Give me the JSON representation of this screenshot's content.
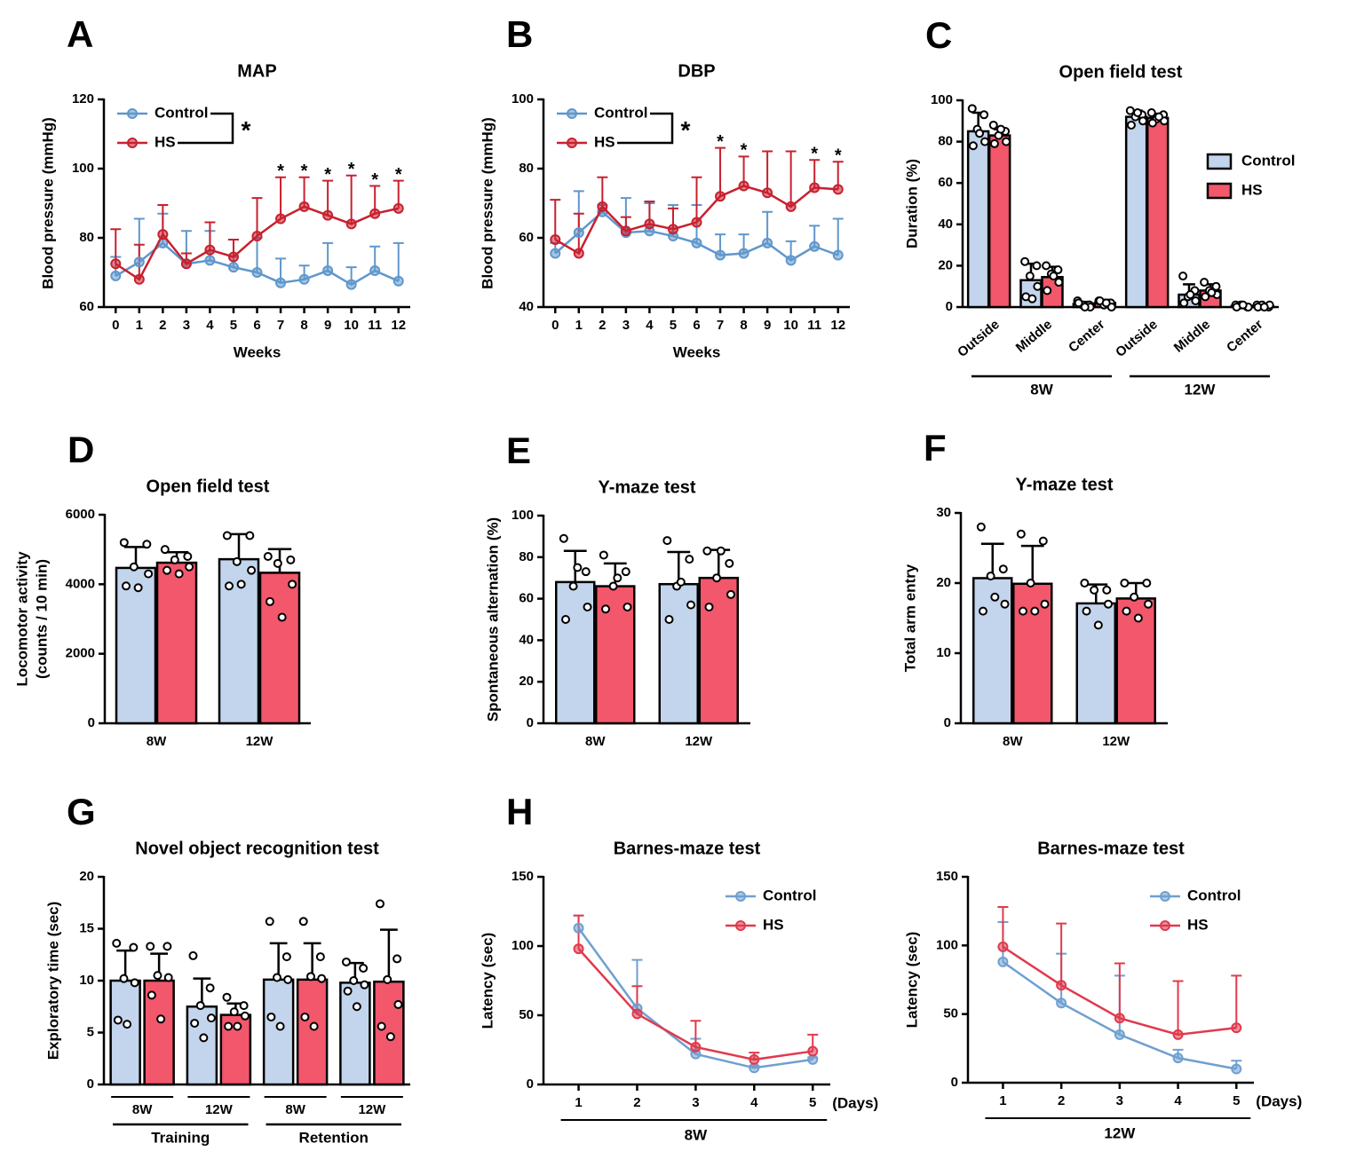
{
  "chart_data": [
    {
      "type": "line",
      "panel": "A",
      "title": "MAP",
      "ylabel": "Blood pressure (mmHg)",
      "xlabel": "Weeks",
      "x": [
        0,
        1,
        2,
        3,
        4,
        5,
        6,
        7,
        8,
        9,
        10,
        11,
        12
      ],
      "xlim": [
        -0.5,
        12.5
      ],
      "xticks": [
        0,
        1,
        2,
        3,
        4,
        5,
        6,
        7,
        8,
        9,
        10,
        11,
        12
      ],
      "ylim": [
        60,
        120
      ],
      "yticks": [
        60,
        80,
        100,
        120
      ],
      "legend": "top-left",
      "significance": "*",
      "series": [
        {
          "name": "Control",
          "color": "#5f97cc",
          "values": [
            69,
            73,
            78.5,
            72.5,
            73.5,
            71.5,
            70,
            67,
            68,
            70.5,
            66.5,
            70.5,
            67.5
          ],
          "errors": [
            5.5,
            12.5,
            8.5,
            9.5,
            8.5,
            3,
            10,
            7,
            4,
            8,
            5,
            7,
            11
          ]
        },
        {
          "name": "HS",
          "color": "#c8202f",
          "values": [
            72.5,
            68,
            81,
            72.5,
            76.5,
            74.5,
            80.5,
            85.5,
            89,
            86.5,
            84,
            87,
            88.5
          ],
          "errors": [
            10,
            10,
            8.5,
            3,
            8,
            5,
            11,
            12,
            8.5,
            10,
            14,
            8,
            8
          ]
        }
      ],
      "annotations": [
        {
          "x": 7,
          "text": "*"
        },
        {
          "x": 8,
          "text": "*"
        },
        {
          "x": 9,
          "text": "*"
        },
        {
          "x": 10,
          "text": "*"
        },
        {
          "x": 11,
          "text": "*"
        },
        {
          "x": 12,
          "text": "*"
        }
      ]
    },
    {
      "type": "line",
      "panel": "B",
      "title": "DBP",
      "ylabel": "Blood pressure (mmHg)",
      "xlabel": "Weeks",
      "x": [
        0,
        1,
        2,
        3,
        4,
        5,
        6,
        7,
        8,
        9,
        10,
        11,
        12
      ],
      "xlim": [
        -0.5,
        12.5
      ],
      "xticks": [
        0,
        1,
        2,
        3,
        4,
        5,
        6,
        7,
        8,
        9,
        10,
        11,
        12
      ],
      "ylim": [
        40,
        100
      ],
      "yticks": [
        40,
        60,
        80,
        100
      ],
      "legend": "top-left",
      "significance": "*",
      "series": [
        {
          "name": "Control",
          "color": "#5f97cc",
          "values": [
            55.5,
            61.5,
            67.5,
            61.5,
            62,
            60.5,
            58.5,
            55,
            55.5,
            58.5,
            53.5,
            57.5,
            55
          ],
          "errors": [
            3,
            12,
            2,
            10,
            8,
            9,
            11,
            6,
            5.5,
            9,
            5.5,
            6,
            10.5
          ]
        },
        {
          "name": "HS",
          "color": "#c8202f",
          "values": [
            59.5,
            55.5,
            69,
            62,
            64,
            62.5,
            64.5,
            72,
            75,
            73,
            69,
            74.5,
            74
          ],
          "errors": [
            11.5,
            11.5,
            8.5,
            4,
            6.5,
            6,
            13,
            14,
            8.5,
            12,
            16,
            8,
            8
          ]
        }
      ],
      "annotations": [
        {
          "x": 7,
          "text": "*"
        },
        {
          "x": 8,
          "text": "*"
        },
        {
          "x": 11,
          "text": "*"
        },
        {
          "x": 12,
          "text": "*"
        }
      ]
    },
    {
      "type": "bar",
      "panel": "C",
      "title": "Open field test",
      "ylabel": "Duration (%)",
      "categories": [
        "Outside",
        "Middle",
        "Center",
        "Outside",
        "Middle",
        "Center"
      ],
      "groups": [
        "8W",
        "12W"
      ],
      "ylim": [
        0,
        100
      ],
      "yticks": [
        0,
        20,
        40,
        60,
        80,
        100
      ],
      "legend": "right",
      "series": [
        {
          "name": "Control",
          "color": "#c3d5ec",
          "values": [
            85,
            13,
            1.5,
            92,
            6,
            0.5
          ],
          "errors": [
            9,
            8,
            1,
            3,
            5,
            0.3
          ],
          "points": [
            [
              96,
              93,
              86,
              80,
              78,
              84
            ],
            [
              22,
              20,
              15,
              10,
              5,
              4
            ],
            [
              3,
              1,
              1,
              0,
              2,
              0
            ],
            [
              95,
              93,
              92,
              90,
              88,
              94
            ],
            [
              15,
              8,
              5,
              3,
              2,
              6
            ],
            [
              1,
              0,
              1,
              0,
              0,
              1
            ]
          ]
        },
        {
          "name": "HS",
          "color": "#f2576b",
          "values": [
            83,
            14.5,
            2,
            91.5,
            8,
            0.5
          ],
          "errors": [
            3,
            5,
            1.5,
            2,
            3,
            0.3
          ],
          "points": [
            [
              88,
              85,
              83,
              80,
              79,
              86
            ],
            [
              20,
              18,
              16,
              12,
              8,
              15
            ],
            [
              3,
              2,
              1,
              0,
              3,
              2
            ],
            [
              94,
              93,
              91,
              90,
              89,
              92
            ],
            [
              12,
              10,
              8,
              6,
              5,
              7
            ],
            [
              1,
              0,
              1,
              1,
              0,
              0
            ]
          ]
        }
      ]
    },
    {
      "type": "bar",
      "panel": "D",
      "title": "Open field test",
      "ylabel": [
        "Locomotor activity",
        "(counts / 10 min)"
      ],
      "categories": [
        "8W",
        "12W"
      ],
      "ylim": [
        0,
        6000
      ],
      "yticks": [
        0,
        2000,
        4000,
        6000
      ],
      "series": [
        {
          "name": "Control",
          "color": "#c3d5ec",
          "values": [
            4470,
            4720
          ],
          "errors": [
            600,
            720
          ],
          "points": [
            [
              5200,
              5150,
              4500,
              4300,
              3950,
              3900
            ],
            [
              5400,
              5400,
              4650,
              4400,
              3950,
              4000
            ]
          ]
        },
        {
          "name": "HS",
          "color": "#f2576b",
          "values": [
            4620,
            4330
          ],
          "errors": [
            300,
            680
          ],
          "points": [
            [
              5000,
              4800,
              4700,
              4500,
              4400,
              4300
            ],
            [
              4800,
              4700,
              4600,
              4000,
              3500,
              3050
            ]
          ]
        }
      ]
    },
    {
      "type": "bar",
      "panel": "E",
      "title": "Y-maze test",
      "ylabel": "Spontaneous alternation (%)",
      "categories": [
        "8W",
        "12W"
      ],
      "ylim": [
        0,
        100
      ],
      "yticks": [
        0,
        20,
        40,
        60,
        80,
        100
      ],
      "series": [
        {
          "name": "Control",
          "color": "#c3d5ec",
          "values": [
            68,
            67
          ],
          "errors": [
            15,
            15.5
          ],
          "points": [
            [
              89,
              73,
              66,
              56,
              50,
              75
            ],
            [
              88,
              79,
              66,
              57,
              50,
              68
            ]
          ]
        },
        {
          "name": "HS",
          "color": "#f2576b",
          "values": [
            66,
            70
          ],
          "errors": [
            11,
            13.5
          ],
          "points": [
            [
              81,
              73,
              66,
              56,
              55,
              70
            ],
            [
              83,
              77,
              70,
              62,
              56,
              83
            ]
          ]
        }
      ]
    },
    {
      "type": "bar",
      "panel": "F",
      "title": "Y-maze test",
      "ylabel": "Total arm entry",
      "categories": [
        "8W",
        "12W"
      ],
      "ylim": [
        0,
        30
      ],
      "yticks": [
        0,
        10,
        20,
        30
      ],
      "series": [
        {
          "name": "Control",
          "color": "#c3d5ec",
          "values": [
            20.7,
            17.1
          ],
          "errors": [
            4.9,
            2.7
          ],
          "points": [
            [
              28,
              22,
              21,
              17,
              16,
              18
            ],
            [
              20,
              19,
              19,
              17,
              16,
              14
            ]
          ]
        },
        {
          "name": "HS",
          "color": "#f2576b",
          "values": [
            19.9,
            17.8
          ],
          "errors": [
            5.4,
            2.2
          ],
          "points": [
            [
              27,
              26,
              20,
              17,
              16,
              16
            ],
            [
              20,
              20,
              18,
              17,
              16,
              15
            ]
          ]
        }
      ]
    },
    {
      "type": "bar",
      "panel": "G",
      "title": "Novel object recognition test",
      "ylabel": "Exploratory time (sec)",
      "categories": [
        "8W",
        "12W",
        "8W",
        "12W"
      ],
      "groups": [
        "Training",
        "Retention"
      ],
      "ylim": [
        0,
        20
      ],
      "yticks": [
        0,
        5,
        10,
        15,
        20
      ],
      "series": [
        {
          "name": "Control",
          "color": "#c3d5ec",
          "values": [
            10,
            7.5,
            10.1,
            9.8
          ],
          "errors": [
            2.9,
            2.7,
            3.5,
            1.9
          ],
          "points": [
            [
              13.6,
              13.2,
              10.2,
              9.8,
              6.2,
              5.8
            ],
            [
              12.4,
              9.3,
              7.6,
              6.4,
              5.9,
              4.5
            ],
            [
              15.7,
              12.3,
              10.3,
              10.1,
              6.5,
              5.6
            ],
            [
              11.8,
              11.2,
              10,
              9.6,
              9,
              7.5
            ]
          ]
        },
        {
          "name": "HS",
          "color": "#f2576b",
          "values": [
            10,
            6.7,
            10.1,
            9.9
          ],
          "errors": [
            2.6,
            1.1,
            3.5,
            5
          ],
          "points": [
            [
              13.3,
              13.3,
              10.5,
              10.3,
              8.6,
              6.3
            ],
            [
              8.4,
              7.6,
              7,
              6.6,
              5.6,
              5.6
            ],
            [
              15.7,
              12.3,
              10.4,
              10.2,
              6.5,
              5.6
            ],
            [
              17.4,
              12.1,
              10.1,
              7.7,
              5.6,
              4.6
            ]
          ]
        }
      ]
    },
    {
      "type": "line",
      "panel": "H",
      "title": "Barnes-maze test",
      "ylabel": "Latency (sec)",
      "xlabel": "(Days)",
      "group": "8W",
      "x": [
        1,
        2,
        3,
        4,
        5
      ],
      "xlim": [
        0.4,
        5.3
      ],
      "xticks": [
        1,
        2,
        3,
        4,
        5
      ],
      "ylim": [
        0,
        150
      ],
      "yticks": [
        0,
        50,
        100,
        150
      ],
      "legend": "top-right",
      "series": [
        {
          "name": "Control",
          "color": "#6fa0d0",
          "values": [
            113,
            55,
            22,
            12,
            18
          ],
          "errors": [
            9,
            35,
            11,
            1.5,
            1.5
          ]
        },
        {
          "name": "HS",
          "color": "#e03a4d",
          "values": [
            98,
            51,
            27,
            18,
            24
          ],
          "errors": [
            24,
            20,
            19,
            5,
            12
          ]
        }
      ]
    },
    {
      "type": "line",
      "title": "Barnes-maze test",
      "ylabel": "Latency (sec)",
      "xlabel": "(Days)",
      "group": "12W",
      "x": [
        1,
        2,
        3,
        4,
        5
      ],
      "xlim": [
        0.4,
        5.3
      ],
      "xticks": [
        1,
        2,
        3,
        4,
        5
      ],
      "ylim": [
        0,
        150
      ],
      "yticks": [
        0,
        50,
        100,
        150
      ],
      "legend": "top-right",
      "series": [
        {
          "name": "Control",
          "color": "#6fa0d0",
          "values": [
            88,
            58,
            35,
            18,
            10
          ],
          "errors": [
            29,
            36,
            43,
            6,
            6
          ]
        },
        {
          "name": "HS",
          "color": "#e03a4d",
          "values": [
            99,
            71,
            47,
            35,
            40
          ],
          "errors": [
            29,
            45,
            40,
            39,
            38
          ]
        }
      ]
    }
  ]
}
